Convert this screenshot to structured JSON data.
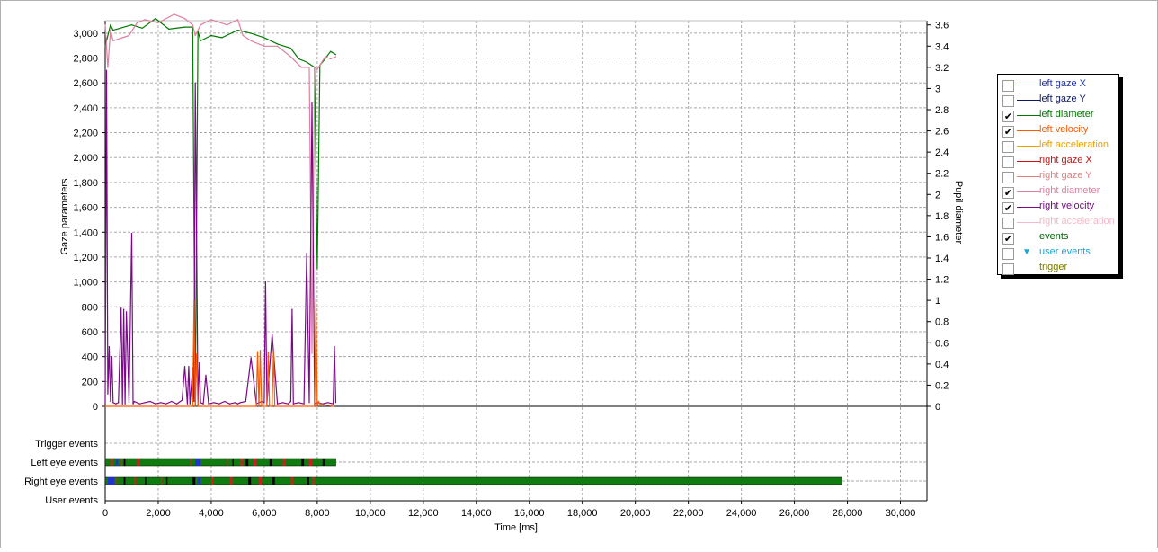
{
  "chart_data": {
    "type": "line",
    "xlabel": "Time [ms]",
    "ylabel": "Gaze parameters",
    "y2label": "Pupil diameter",
    "xlim": [
      0,
      31000
    ],
    "ylim": [
      0,
      3100
    ],
    "y2lim": [
      0,
      3.64
    ],
    "x_ticks": [
      0,
      2000,
      4000,
      6000,
      8000,
      10000,
      12000,
      14000,
      16000,
      18000,
      20000,
      22000,
      24000,
      26000,
      28000,
      30000
    ],
    "y_ticks": [
      0,
      200,
      400,
      600,
      800,
      1000,
      1200,
      1400,
      1600,
      1800,
      2000,
      2200,
      2400,
      2600,
      2800,
      3000
    ],
    "y2_ticks": [
      0,
      0.2,
      0.4,
      0.6,
      0.8,
      1,
      1.2,
      1.4,
      1.6,
      1.8,
      2,
      2.2,
      2.4,
      2.6,
      2.8,
      3,
      3.2,
      3.4,
      3.6
    ],
    "grid": true,
    "legend_position": "right",
    "series": [
      {
        "name": "left diameter",
        "axis": "right",
        "color": "#007a00",
        "x": [
          0,
          200,
          300,
          1000,
          1400,
          1900,
          2400,
          3000,
          3300,
          3400,
          3500,
          3600,
          4000,
          4400,
          5000,
          5500,
          6000,
          6500,
          7000,
          7300,
          7600,
          7900,
          8000,
          8100,
          8300,
          8500,
          8700
        ],
        "y": [
          3.4,
          3.6,
          3.55,
          3.6,
          3.57,
          3.66,
          3.56,
          3.58,
          3.58,
          0.0,
          3.54,
          3.45,
          3.5,
          3.48,
          3.55,
          3.52,
          3.48,
          3.42,
          3.38,
          3.28,
          3.25,
          3.2,
          1.3,
          3.22,
          3.28,
          3.35,
          3.32
        ]
      },
      {
        "name": "right diameter",
        "axis": "right",
        "color": "#e07f9e",
        "x": [
          0,
          100,
          200,
          300,
          900,
          1200,
          1500,
          2000,
          2600,
          3000,
          3300,
          3400,
          3600,
          4000,
          4600,
          5000,
          5200,
          5500,
          6000,
          6500,
          7000,
          7400,
          7700,
          7800,
          7900,
          8000,
          8300,
          8500,
          8700
        ],
        "y": [
          3.6,
          3.2,
          3.55,
          3.45,
          3.5,
          3.62,
          3.65,
          3.62,
          3.7,
          3.66,
          3.6,
          3.5,
          3.6,
          3.65,
          3.6,
          3.65,
          3.5,
          3.45,
          3.4,
          3.4,
          3.3,
          3.2,
          3.2,
          0.5,
          3.2,
          3.18,
          3.3,
          3.28,
          3.3
        ]
      },
      {
        "name": "right velocity",
        "axis": "left",
        "color": "#7b0a8a",
        "x": [
          0,
          50,
          100,
          150,
          200,
          250,
          300,
          400,
          500,
          600,
          650,
          700,
          750,
          800,
          900,
          1000,
          1050,
          1100,
          1300,
          1500,
          1700,
          1900,
          2100,
          2300,
          2500,
          2700,
          2900,
          3000,
          3100,
          3150,
          3200,
          3300,
          3350,
          3400,
          3500,
          3550,
          3600,
          3700,
          3800,
          3900,
          4100,
          4300,
          4500,
          4700,
          4900,
          5000,
          5100,
          5300,
          5500,
          5700,
          5900,
          6000,
          6050,
          6100,
          6300,
          6500,
          6700,
          6900,
          7000,
          7050,
          7100,
          7300,
          7500,
          7600,
          7700,
          7800,
          7900,
          8000,
          8200,
          8400,
          8600,
          8650,
          8700
        ],
        "y": [
          30,
          2700,
          100,
          480,
          40,
          400,
          30,
          20,
          30,
          790,
          20,
          780,
          20,
          760,
          30,
          1390,
          20,
          40,
          20,
          30,
          40,
          20,
          30,
          20,
          40,
          20,
          50,
          320,
          20,
          320,
          20,
          310,
          40,
          2600,
          20,
          350,
          30,
          20,
          250,
          20,
          30,
          20,
          40,
          20,
          30,
          20,
          30,
          40,
          390,
          20,
          40,
          30,
          1000,
          20,
          580,
          20,
          30,
          20,
          40,
          780,
          20,
          30,
          20,
          1230,
          30,
          2440,
          20,
          30,
          20,
          30,
          20,
          480,
          30
        ]
      },
      {
        "name": "left velocity",
        "axis": "left",
        "color": "#ff5a00",
        "x": [
          0,
          3300,
          3350,
          3400,
          3450,
          3500,
          5700,
          5750,
          5800,
          5850,
          5900,
          6000,
          6100,
          6150,
          6200,
          6300,
          6350,
          6400,
          7900,
          7950,
          8000,
          8050,
          8100,
          8600
        ],
        "y": [
          0,
          0,
          850,
          0,
          420,
          0,
          0,
          440,
          0,
          450,
          0,
          0,
          0,
          430,
          0,
          0,
          440,
          0,
          0,
          860,
          0,
          40,
          20,
          0
        ]
      }
    ]
  },
  "axis_text": {
    "y_ticks": [
      "0",
      "200",
      "400",
      "600",
      "800",
      "1,000",
      "1,200",
      "1,400",
      "1,600",
      "1,800",
      "2,000",
      "2,200",
      "2,400",
      "2,600",
      "2,800",
      "3,000"
    ],
    "y2_ticks": [
      "0",
      "0.2",
      "0.4",
      "0.6",
      "0.8",
      "1",
      "1.2",
      "1.4",
      "1.6",
      "1.8",
      "2",
      "2.2",
      "2.4",
      "2.6",
      "2.8",
      "3",
      "3.2",
      "3.4",
      "3.6"
    ],
    "x_ticks": [
      "0",
      "2,000",
      "4,000",
      "6,000",
      "8,000",
      "10,000",
      "12,000",
      "14,000",
      "16,000",
      "18,000",
      "20,000",
      "22,000",
      "24,000",
      "26,000",
      "28,000",
      "30,000"
    ]
  },
  "event_rows": {
    "labels": [
      "Trigger events",
      "Left eye events",
      "Right eye events",
      "User events"
    ],
    "left_eye": {
      "start": 0,
      "end": 8700,
      "color": "#107c10",
      "marks": [
        [
          200,
          300,
          "#c82020"
        ],
        [
          400,
          480,
          "#2233cc"
        ],
        [
          600,
          650,
          "#c82020"
        ],
        [
          700,
          760,
          "#000000"
        ],
        [
          1200,
          1300,
          "#c82020"
        ],
        [
          3200,
          3250,
          "#c82020"
        ],
        [
          3400,
          3600,
          "#2233cc"
        ],
        [
          4600,
          4650,
          "#c82020"
        ],
        [
          4800,
          4850,
          "#000000"
        ],
        [
          5100,
          5200,
          "#c82020"
        ],
        [
          5300,
          5400,
          "#000000"
        ],
        [
          5600,
          5700,
          "#c82020"
        ],
        [
          6200,
          6300,
          "#000000"
        ],
        [
          6700,
          6800,
          "#c82020"
        ],
        [
          7400,
          7500,
          "#000000"
        ],
        [
          7700,
          7800,
          "#c82020"
        ],
        [
          8200,
          8300,
          "#000000"
        ]
      ]
    },
    "right_eye": {
      "start": 0,
      "end": 27800,
      "color": "#107c10",
      "marks": [
        [
          100,
          350,
          "#2233cc"
        ],
        [
          400,
          450,
          "#c82020"
        ],
        [
          700,
          760,
          "#000000"
        ],
        [
          1100,
          1150,
          "#c82020"
        ],
        [
          1500,
          1550,
          "#000000"
        ],
        [
          2100,
          2150,
          "#c82020"
        ],
        [
          2300,
          2350,
          "#000000"
        ],
        [
          3300,
          3400,
          "#000000"
        ],
        [
          3500,
          3600,
          "#2233cc"
        ],
        [
          4000,
          4100,
          "#c82020"
        ],
        [
          4700,
          4800,
          "#c82020"
        ],
        [
          5400,
          5500,
          "#000000"
        ],
        [
          5800,
          5900,
          "#c82020"
        ],
        [
          6300,
          6400,
          "#000000"
        ],
        [
          7000,
          7100,
          "#c82020"
        ],
        [
          7600,
          7700,
          "#000000"
        ],
        [
          7800,
          7900,
          "#c82020"
        ]
      ]
    }
  },
  "legend": [
    {
      "label": "left gaze X",
      "checked": false,
      "color": "#1f2fb0",
      "text_color": "#1f2fb0",
      "kind": "line"
    },
    {
      "label": "left gaze Y",
      "checked": false,
      "color": "#0f1a66",
      "text_color": "#0f1a66",
      "kind": "line"
    },
    {
      "label": "left diameter",
      "checked": true,
      "color": "#007a00",
      "text_color": "#007a00",
      "kind": "line"
    },
    {
      "label": "left velocity",
      "checked": true,
      "color": "#ff5a00",
      "text_color": "#ff5a00",
      "kind": "line"
    },
    {
      "label": "left acceleration",
      "checked": false,
      "color": "#f0a000",
      "text_color": "#f0a000",
      "kind": "line"
    },
    {
      "label": "right gaze X",
      "checked": false,
      "color": "#d01010",
      "text_color": "#d01010",
      "kind": "line"
    },
    {
      "label": "right gaze Y",
      "checked": false,
      "color": "#e08080",
      "text_color": "#e08080",
      "kind": "line"
    },
    {
      "label": "right diameter",
      "checked": true,
      "color": "#e07f9e",
      "text_color": "#e07f9e",
      "kind": "line"
    },
    {
      "label": "right velocity",
      "checked": true,
      "color": "#7b0a8a",
      "text_color": "#7b0a8a",
      "kind": "line"
    },
    {
      "label": "right acceleration",
      "checked": false,
      "color": "#f4b8c8",
      "text_color": "#f4b8c8",
      "kind": "line"
    },
    {
      "label": "events",
      "checked": true,
      "color": "",
      "text_color": "#006400",
      "kind": "none"
    },
    {
      "label": "user events",
      "checked": false,
      "color": "#1aa6d6",
      "text_color": "#1aa6d6",
      "kind": "triangle"
    },
    {
      "label": "trigger",
      "checked": false,
      "color": "",
      "text_color": "#7a7a00",
      "kind": "none"
    }
  ]
}
